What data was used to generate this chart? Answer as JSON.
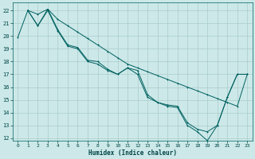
{
  "xlabel": "Humidex (Indice chaleur)",
  "bg_color": "#cce8e8",
  "grid_color": "#aacccc",
  "line_color": "#006060",
  "xlim": [
    -0.5,
    23.5
  ],
  "ylim": [
    11.8,
    22.6
  ],
  "xticks": [
    0,
    1,
    2,
    3,
    4,
    5,
    6,
    7,
    8,
    9,
    10,
    11,
    12,
    13,
    14,
    15,
    16,
    17,
    18,
    19,
    20,
    21,
    22,
    23
  ],
  "yticks": [
    12,
    13,
    14,
    15,
    16,
    17,
    18,
    19,
    20,
    21,
    22
  ],
  "line1_x": [
    0,
    1,
    2,
    3,
    4,
    5,
    6,
    7,
    8,
    9,
    10,
    11,
    12,
    13,
    14,
    15,
    16,
    17,
    18,
    19,
    20,
    21,
    22,
    23
  ],
  "line1_y": [
    19.9,
    22.0,
    21.7,
    22.1,
    21.3,
    20.8,
    20.3,
    19.8,
    19.3,
    18.8,
    18.3,
    17.8,
    17.5,
    17.2,
    16.9,
    16.6,
    16.3,
    16.0,
    15.7,
    15.4,
    15.1,
    14.8,
    14.5,
    17.0
  ],
  "line2_x": [
    1,
    2,
    3,
    4,
    5,
    6,
    7,
    8,
    9,
    10,
    11,
    12,
    13,
    14,
    15,
    16,
    17,
    18,
    19,
    20,
    21,
    22,
    23
  ],
  "line2_y": [
    22.0,
    20.8,
    22.1,
    20.5,
    19.3,
    19.1,
    18.1,
    18.0,
    17.4,
    17.0,
    17.5,
    17.3,
    15.4,
    14.8,
    14.6,
    14.5,
    13.2,
    12.7,
    12.5,
    13.0,
    15.2,
    17.0,
    17.0
  ],
  "line3_x": [
    1,
    2,
    3,
    4,
    5,
    6,
    7,
    8,
    9,
    10,
    11,
    12,
    13,
    14,
    15,
    16,
    17,
    18,
    19,
    20,
    21,
    22,
    23
  ],
  "line3_y": [
    22.0,
    20.8,
    22.0,
    20.4,
    19.2,
    19.0,
    18.0,
    17.8,
    17.3,
    17.0,
    17.5,
    17.0,
    15.2,
    14.8,
    14.5,
    14.4,
    13.0,
    12.5,
    11.8,
    13.0,
    15.2,
    17.0,
    17.0
  ]
}
